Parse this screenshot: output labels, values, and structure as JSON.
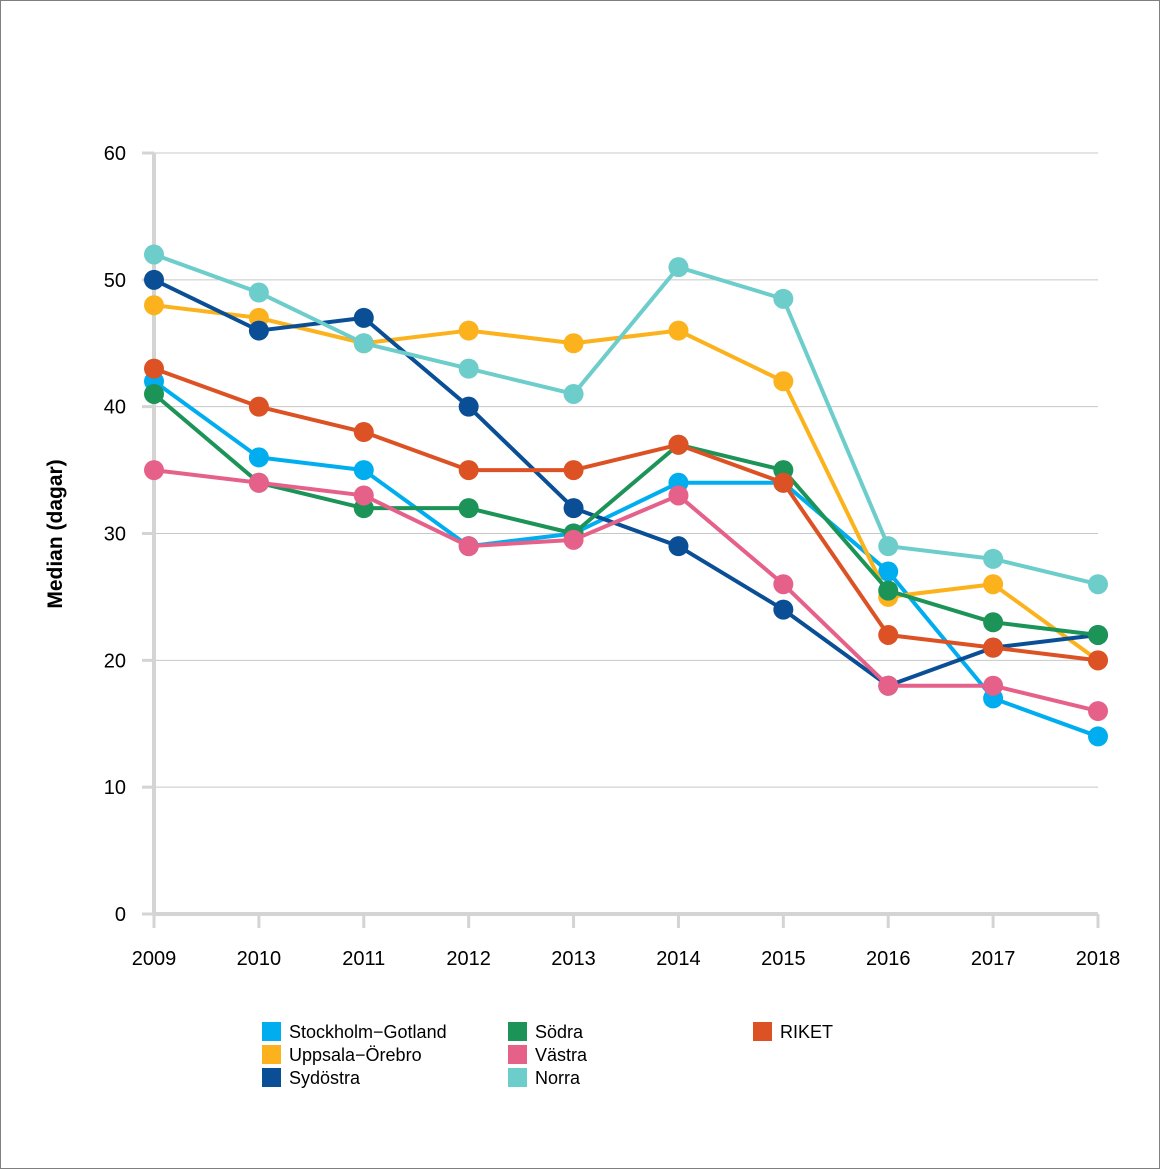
{
  "chart_data": {
    "type": "line",
    "title": "",
    "xlabel": "",
    "ylabel": "Median (dagar)",
    "ylim": [
      0,
      60
    ],
    "yticks": [
      0,
      10,
      20,
      30,
      40,
      50,
      60
    ],
    "grid": true,
    "legend_position": "bottom",
    "x": [
      "2009",
      "2010",
      "2011",
      "2012",
      "2013",
      "2014",
      "2015",
      "2016",
      "2017",
      "2018"
    ],
    "series": [
      {
        "name": "Stockholm−Gotland",
        "color": "#00aeef",
        "values": [
          42,
          36,
          35,
          29,
          30,
          34,
          34,
          27,
          17,
          14
        ]
      },
      {
        "name": "Uppsala−Örebro",
        "color": "#fbb21c",
        "values": [
          48,
          47,
          45,
          46,
          45,
          46,
          42,
          25,
          26,
          20
        ]
      },
      {
        "name": "Sydöstra",
        "color": "#0a4f96",
        "values": [
          50,
          46,
          47,
          40,
          32,
          29,
          24,
          18,
          21,
          22
        ]
      },
      {
        "name": "Södra",
        "color": "#1c9458",
        "values": [
          41,
          34,
          32,
          32,
          30,
          37,
          35,
          25.5,
          23,
          22
        ]
      },
      {
        "name": "Västra",
        "color": "#e5618a",
        "values": [
          35,
          34,
          33,
          29,
          29.5,
          33,
          26,
          18,
          18,
          16
        ]
      },
      {
        "name": "Norra",
        "color": "#6dcdcb",
        "values": [
          52,
          49,
          45,
          43,
          41,
          51,
          48.5,
          29,
          28,
          26
        ]
      },
      {
        "name": "RIKET",
        "color": "#dc5224",
        "values": [
          43,
          40,
          38,
          35,
          35,
          37,
          34,
          22,
          21,
          20
        ]
      }
    ],
    "legend_columns": [
      [
        0,
        1,
        2
      ],
      [
        3,
        4,
        5
      ],
      [
        6
      ]
    ]
  }
}
